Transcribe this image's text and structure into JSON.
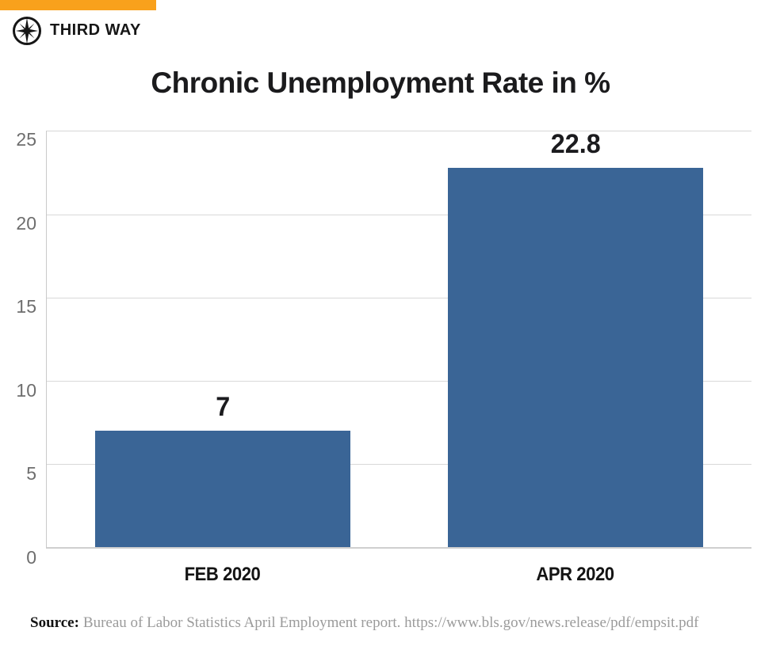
{
  "brand": {
    "name": "THIRD WAY",
    "accent_color": "#F9A11C",
    "logo_icon": "compass-star-icon"
  },
  "title": "Chronic Unemployment Rate in %",
  "chart_data": {
    "type": "bar",
    "title": "Chronic Unemployment Rate in %",
    "categories": [
      "FEB 2020",
      "APR 2020"
    ],
    "values": [
      7,
      22.8
    ],
    "value_labels": [
      "7",
      "22.8"
    ],
    "xlabel": "",
    "ylabel": "",
    "ylim": [
      0,
      25
    ],
    "ytick_interval": 5,
    "yticks": [
      "25",
      "20",
      "15",
      "10",
      "5",
      "0"
    ],
    "grid": true,
    "legend_position": "none",
    "bar_color": "#3A6596",
    "gridline_color": "#d9d9d9"
  },
  "source": {
    "label": "Source:",
    "text": "Bureau of Labor Statistics April Employment report. https://www.bls.gov/news.release/pdf/empsit.pdf"
  }
}
